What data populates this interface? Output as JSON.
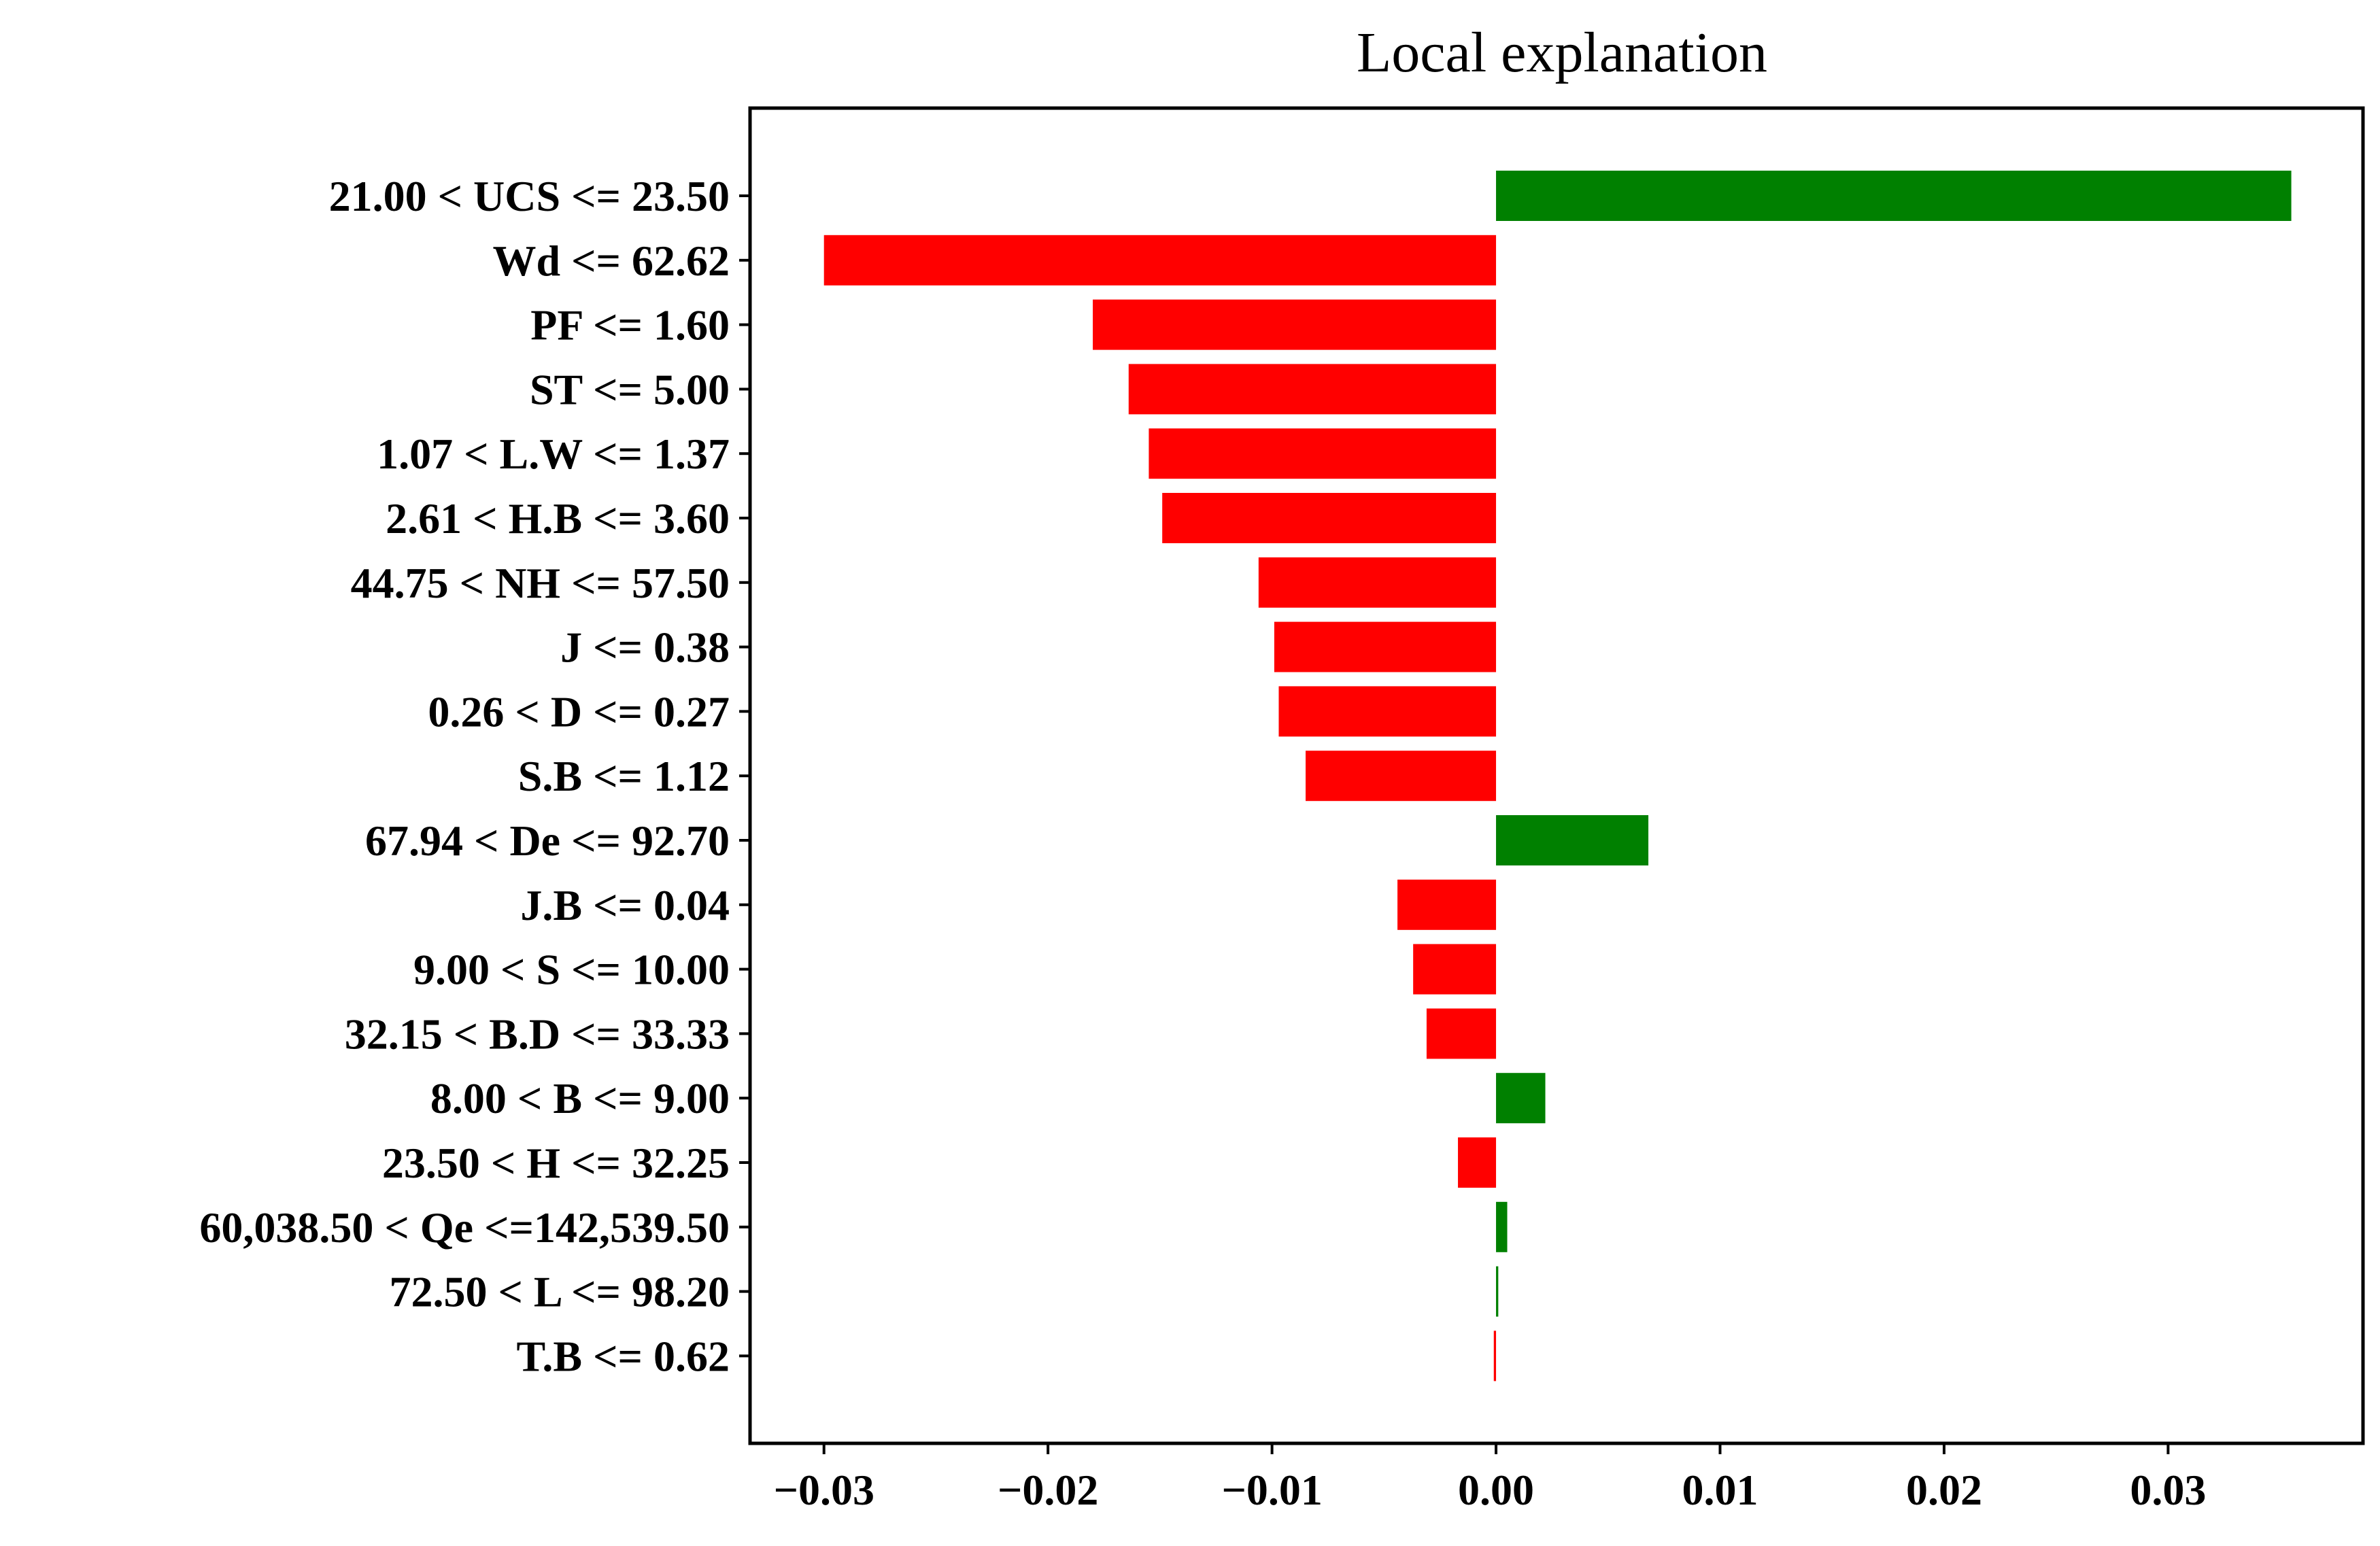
{
  "chart_data": {
    "type": "bar",
    "orientation": "horizontal",
    "title": "Local explanation",
    "xlabel": "",
    "ylabel": "",
    "xlim": [
      -0.0333,
      0.0387
    ],
    "xticks": [
      -0.03,
      -0.02,
      -0.01,
      0.0,
      0.01,
      0.02,
      0.03
    ],
    "xtick_labels": [
      "−0.03",
      "−0.02",
      "−0.01",
      "0.00",
      "0.01",
      "0.02",
      "0.03"
    ],
    "grid": false,
    "colors": {
      "positive": "#008000",
      "negative": "#ff0000"
    },
    "categories": [
      "21.00 < UCS <= 23.50",
      "Wd <= 62.62",
      "PF <= 1.60",
      "ST <= 5.00",
      "1.07 < L.W <= 1.37",
      "2.61 < H.B <= 3.60",
      "44.75 < NH <= 57.50",
      "J <= 0.38",
      "0.26 < D <= 0.27",
      "S.B <= 1.12",
      "67.94 < De <= 92.70",
      "J.B <= 0.04",
      "9.00 < S <= 10.00",
      "32.15 < B.D <= 33.33",
      "8.00 < B <= 9.00",
      "23.50 < H <= 32.25",
      "60,038.50 < Qe <=142,539.50",
      "72.50 < L <= 98.20",
      "T.B <= 0.62"
    ],
    "values": [
      0.0355,
      -0.03,
      -0.018,
      -0.0164,
      -0.0155,
      -0.0149,
      -0.0106,
      -0.0099,
      -0.0097,
      -0.0085,
      0.0068,
      -0.0044,
      -0.0037,
      -0.0031,
      0.0022,
      -0.0017,
      0.0005,
      0.0001,
      -0.0001
    ]
  }
}
